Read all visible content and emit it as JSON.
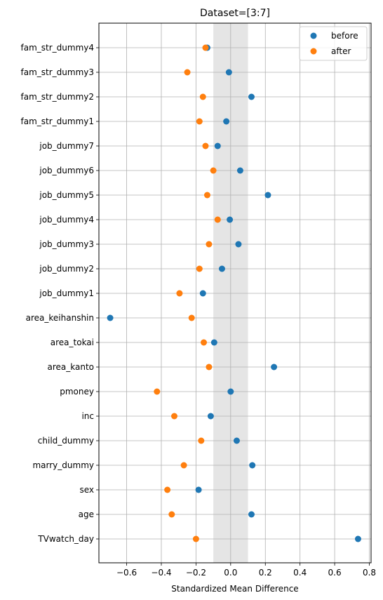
{
  "chart_data": {
    "type": "scatter",
    "title": "Dataset=[3:7]",
    "xlabel": "Standardized Mean Difference",
    "ylabel": "",
    "xlim": [
      -0.76,
      0.81
    ],
    "xticks": [
      -0.6,
      -0.4,
      -0.2,
      0.0,
      0.2,
      0.4,
      0.6,
      0.8
    ],
    "xtick_labels": [
      "−0.6",
      "−0.4",
      "−0.2",
      "0.0",
      "0.2",
      "0.4",
      "0.6",
      "0.8"
    ],
    "grid": true,
    "shaded_band": [
      -0.1,
      0.1
    ],
    "legend_position": "top-right",
    "categories": [
      "TVwatch_day",
      "age",
      "sex",
      "marry_dummy",
      "child_dummy",
      "inc",
      "pmoney",
      "area_kanto",
      "area_tokai",
      "area_keihanshin",
      "job_dummy1",
      "job_dummy2",
      "job_dummy3",
      "job_dummy4",
      "job_dummy5",
      "job_dummy6",
      "job_dummy7",
      "fam_str_dummy1",
      "fam_str_dummy2",
      "fam_str_dummy3",
      "fam_str_dummy4"
    ],
    "series": [
      {
        "name": "before",
        "color": "#1f77b4",
        "values": [
          0.735,
          0.12,
          -0.185,
          0.125,
          0.035,
          -0.115,
          0.0,
          0.25,
          -0.095,
          -0.695,
          -0.16,
          -0.05,
          0.045,
          -0.005,
          0.215,
          0.055,
          -0.075,
          -0.025,
          0.12,
          -0.01,
          -0.135
        ]
      },
      {
        "name": "after",
        "color": "#ff7f0e",
        "values": [
          -0.2,
          -0.34,
          -0.365,
          -0.27,
          -0.17,
          -0.325,
          -0.425,
          -0.125,
          -0.155,
          -0.225,
          -0.295,
          -0.18,
          -0.125,
          -0.075,
          -0.135,
          -0.1,
          -0.145,
          -0.18,
          -0.16,
          -0.25,
          -0.145
        ]
      }
    ]
  }
}
